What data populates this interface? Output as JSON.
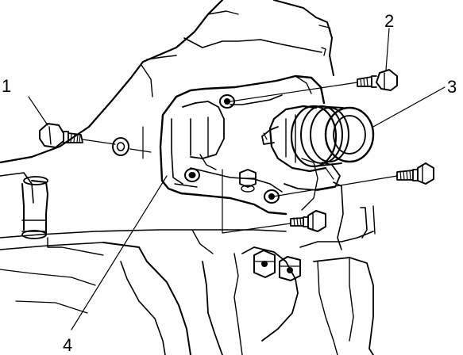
{
  "diagram": {
    "callouts": [
      {
        "id": "1",
        "label": "1"
      },
      {
        "id": "2",
        "label": "2"
      },
      {
        "id": "3",
        "label": "3"
      },
      {
        "id": "4",
        "label": "4"
      }
    ]
  }
}
